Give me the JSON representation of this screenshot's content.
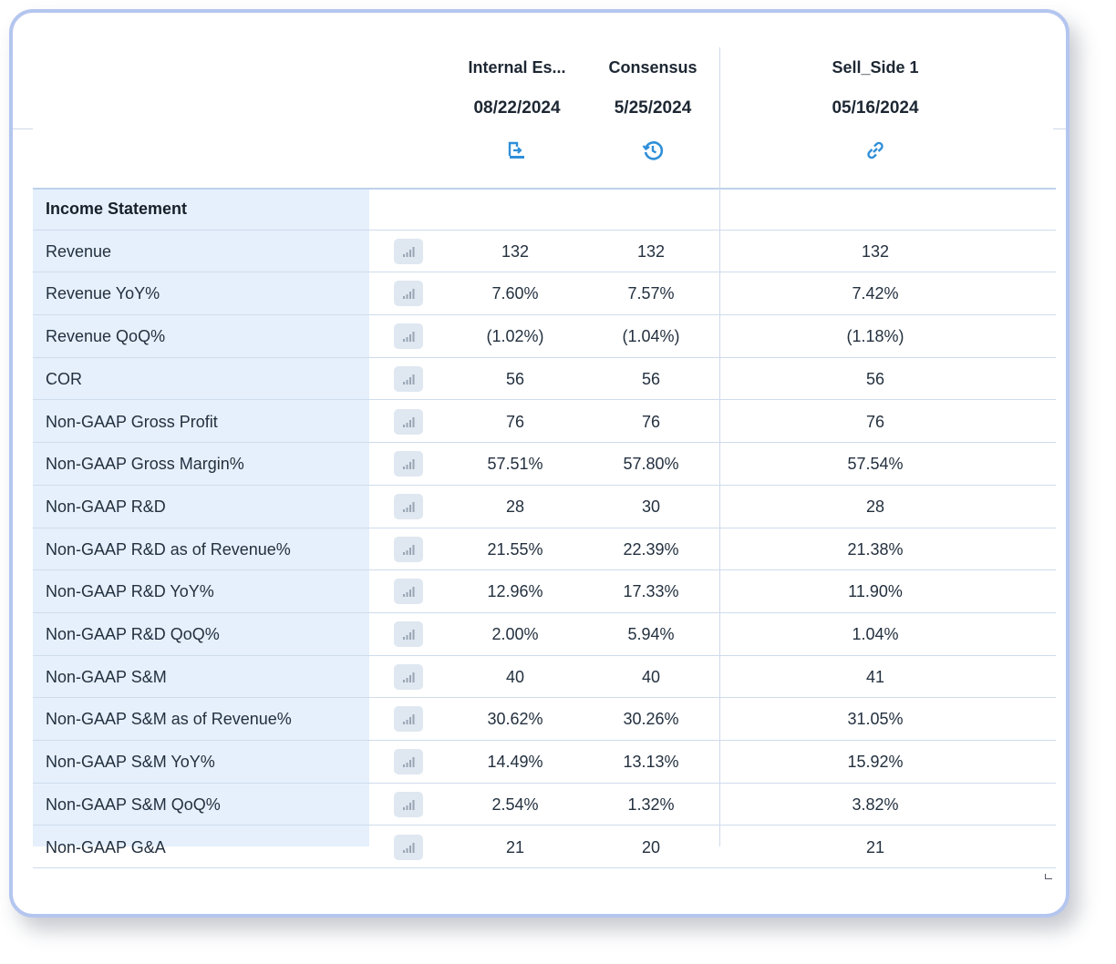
{
  "columns": [
    {
      "name": "Internal Es...",
      "date": "08/22/2024",
      "icon": "import-icon"
    },
    {
      "name": "Consensus",
      "date": "5/25/2024",
      "icon": "history-icon"
    },
    {
      "name": "Sell_Side 1",
      "date": "05/16/2024",
      "icon": "link-icon"
    }
  ],
  "section_title": "Income Statement",
  "rows": [
    {
      "label": "Revenue",
      "values": [
        "132",
        "132",
        "132"
      ]
    },
    {
      "label": "Revenue YoY%",
      "values": [
        "7.60%",
        "7.57%",
        "7.42%"
      ]
    },
    {
      "label": "Revenue QoQ%",
      "values": [
        "(1.02%)",
        "(1.04%)",
        "(1.18%)"
      ]
    },
    {
      "label": "COR",
      "values": [
        "56",
        "56",
        "56"
      ]
    },
    {
      "label": "Non-GAAP Gross Profit",
      "values": [
        "76",
        "76",
        "76"
      ]
    },
    {
      "label": "Non-GAAP Gross Margin%",
      "values": [
        "57.51%",
        "57.80%",
        "57.54%"
      ]
    },
    {
      "label": "Non-GAAP R&D",
      "values": [
        "28",
        "30",
        "28"
      ]
    },
    {
      "label": "Non-GAAP R&D as of Revenue%",
      "values": [
        "21.55%",
        "22.39%",
        "21.38%"
      ]
    },
    {
      "label": "Non-GAAP R&D YoY%",
      "values": [
        "12.96%",
        "17.33%",
        "11.90%"
      ]
    },
    {
      "label": "Non-GAAP R&D QoQ%",
      "values": [
        "2.00%",
        "5.94%",
        "1.04%"
      ]
    },
    {
      "label": "Non-GAAP S&M",
      "values": [
        "40",
        "40",
        "41"
      ]
    },
    {
      "label": "Non-GAAP S&M as of Revenue%",
      "values": [
        "30.62%",
        "30.26%",
        "31.05%"
      ]
    },
    {
      "label": "Non-GAAP S&M YoY%",
      "values": [
        "14.49%",
        "13.13%",
        "15.92%"
      ]
    },
    {
      "label": "Non-GAAP S&M QoQ%",
      "values": [
        "2.54%",
        "1.32%",
        "3.82%"
      ]
    },
    {
      "label": "Non-GAAP G&A",
      "values": [
        "21",
        "20",
        "21"
      ]
    }
  ],
  "row_action_icon": "bar-chart-icon",
  "colors": {
    "accent": "#2f8fd8",
    "label_bg": "#e6f0fc",
    "border": "#b4c6ef"
  }
}
